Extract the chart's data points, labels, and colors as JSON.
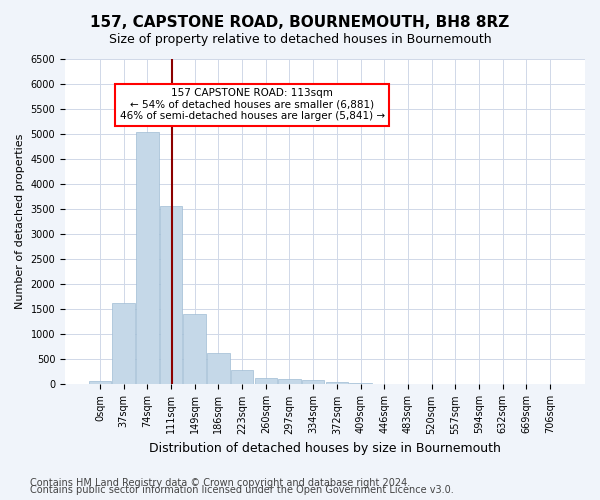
{
  "title": "157, CAPSTONE ROAD, BOURNEMOUTH, BH8 8RZ",
  "subtitle": "Size of property relative to detached houses in Bournemouth",
  "xlabel": "Distribution of detached houses by size in Bournemouth",
  "ylabel": "Number of detached properties",
  "bin_labels": [
    "0sqm",
    "37sqm",
    "74sqm",
    "111sqm",
    "149sqm",
    "186sqm",
    "223sqm",
    "260sqm",
    "297sqm",
    "334sqm",
    "372sqm",
    "409sqm",
    "446sqm",
    "483sqm",
    "520sqm",
    "557sqm",
    "594sqm",
    "632sqm",
    "669sqm",
    "706sqm"
  ],
  "bar_values": [
    60,
    1620,
    5050,
    3560,
    1400,
    620,
    280,
    120,
    100,
    80,
    50,
    25,
    10,
    5,
    3,
    2,
    1,
    1,
    0,
    0
  ],
  "bar_color": "#c5d8e8",
  "bar_edgecolor": "#a0bcd4",
  "grid_color": "#d0d8e8",
  "property_line_x": 3.05,
  "property_sqm": 113,
  "annotation_text": "157 CAPSTONE ROAD: 113sqm\n← 54% of detached houses are smaller (6,881)\n46% of semi-detached houses are larger (5,841) →",
  "annotation_box_color": "white",
  "annotation_box_edgecolor": "red",
  "vline_color": "darkred",
  "ylim": [
    0,
    6500
  ],
  "yticks": [
    0,
    500,
    1000,
    1500,
    2000,
    2500,
    3000,
    3500,
    4000,
    4500,
    5000,
    5500,
    6000,
    6500
  ],
  "footer1": "Contains HM Land Registry data © Crown copyright and database right 2024.",
  "footer2": "Contains public sector information licensed under the Open Government Licence v3.0.",
  "background_color": "#f0f4fa",
  "plot_bg_color": "white",
  "title_fontsize": 11,
  "subtitle_fontsize": 9,
  "xlabel_fontsize": 9,
  "ylabel_fontsize": 8,
  "tick_fontsize": 7,
  "footer_fontsize": 7
}
